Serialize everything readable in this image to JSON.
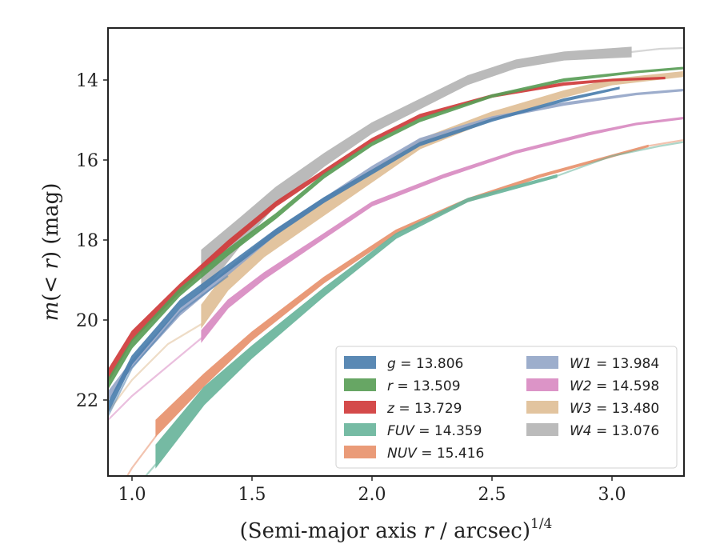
{
  "chart_data": {
    "type": "line",
    "title": "",
    "xlabel": "(Semi-major axis r / arcsec)",
    "xlabel_sup": "1/4",
    "ylabel_main": "(< r) (mag)",
    "ylabel_m": "m",
    "xlim": [
      0.9,
      3.3
    ],
    "ylim": [
      23.9,
      12.7
    ],
    "y_inverted": true,
    "xticks": [
      1.0,
      1.5,
      2.0,
      2.5,
      3.0
    ],
    "xtick_labels": [
      "1.0",
      "1.5",
      "2.0",
      "2.5",
      "3.0"
    ],
    "yticks": [
      14,
      16,
      18,
      20,
      22
    ],
    "ytick_labels": [
      "14",
      "16",
      "18",
      "20",
      "22"
    ],
    "grid": false,
    "legend_position": "lower-right",
    "series": [
      {
        "name": "g = 13.806",
        "sym": "g",
        "value": "= 13.806",
        "color": "#4c7fae",
        "faint_x": [
          0.9,
          1.0,
          1.2,
          1.4
        ],
        "faint_y": [
          22.4,
          21.2,
          19.8,
          18.9
        ],
        "x": [
          0.9,
          1.0,
          1.2,
          1.4,
          1.6,
          1.8,
          2.0,
          2.2,
          2.5,
          2.8,
          3.03
        ],
        "y": [
          22.2,
          21.0,
          19.6,
          18.7,
          17.8,
          17.0,
          16.3,
          15.6,
          15.0,
          14.5,
          14.2
        ],
        "half": [
          0.12,
          0.1,
          0.09,
          0.08,
          0.07,
          0.06,
          0.05,
          0.04,
          0.03,
          0.03,
          0.02
        ],
        "tail_x": [],
        "tail_y": []
      },
      {
        "name": "r = 13.509",
        "sym": "r",
        "value": "= 13.509",
        "color": "#5a9e57",
        "faint_x": [],
        "faint_y": [],
        "x": [
          0.9,
          1.0,
          1.2,
          1.4,
          1.6,
          1.8,
          2.0,
          2.2,
          2.5,
          2.8,
          3.1,
          3.3
        ],
        "y": [
          21.6,
          20.6,
          19.3,
          18.3,
          17.4,
          16.4,
          15.6,
          15.0,
          14.4,
          14.0,
          13.8,
          13.7
        ],
        "half": [
          0.12,
          0.1,
          0.09,
          0.08,
          0.06,
          0.05,
          0.04,
          0.04,
          0.03,
          0.03,
          0.02,
          0.02
        ],
        "tail_x": [],
        "tail_y": []
      },
      {
        "name": "z = 13.729",
        "sym": "z",
        "value": "= 13.729",
        "color": "#d03b3b",
        "faint_x": [],
        "faint_y": [],
        "x": [
          0.9,
          1.0,
          1.2,
          1.4,
          1.6,
          1.8,
          2.0,
          2.2,
          2.5,
          2.8,
          3.0,
          3.22
        ],
        "y": [
          21.4,
          20.4,
          19.2,
          18.1,
          17.1,
          16.3,
          15.5,
          14.9,
          14.4,
          14.1,
          14.0,
          13.95
        ],
        "half": [
          0.15,
          0.12,
          0.1,
          0.08,
          0.06,
          0.05,
          0.04,
          0.04,
          0.03,
          0.03,
          0.02,
          0.02
        ],
        "tail_x": [],
        "tail_y": []
      },
      {
        "name": "FUV = 14.359",
        "sym": "FUV",
        "value": "= 14.359",
        "color": "#6ab59c",
        "faint_x": [
          0.95,
          1.0,
          1.1
        ],
        "faint_y": [
          24.8,
          24.3,
          23.6
        ],
        "x": [
          1.1,
          1.3,
          1.5,
          1.8,
          2.1,
          2.4,
          2.77
        ],
        "y": [
          23.4,
          21.9,
          20.8,
          19.3,
          17.9,
          17.0,
          16.4
        ],
        "half": [
          0.28,
          0.22,
          0.15,
          0.1,
          0.06,
          0.04,
          0.03
        ],
        "tail_x": [
          2.77,
          3.0,
          3.2,
          3.3
        ],
        "tail_y": [
          16.4,
          15.9,
          15.65,
          15.55
        ]
      },
      {
        "name": "NUV = 15.416",
        "sym": "NUV",
        "value": "= 15.416",
        "color": "#e8926d",
        "faint_x": [
          0.95,
          1.0,
          1.1
        ],
        "faint_y": [
          24.2,
          23.7,
          22.9
        ],
        "x": [
          1.1,
          1.3,
          1.5,
          1.8,
          2.1,
          2.4,
          2.7,
          3.15
        ],
        "y": [
          22.7,
          21.5,
          20.4,
          19.0,
          17.8,
          17.0,
          16.4,
          15.65
        ],
        "half": [
          0.2,
          0.15,
          0.1,
          0.07,
          0.05,
          0.04,
          0.03,
          0.02
        ],
        "tail_x": [
          3.15,
          3.3
        ],
        "tail_y": [
          15.65,
          15.5
        ]
      },
      {
        "name": "W1 = 13.984",
        "sym": "W1",
        "value": "= 13.984",
        "color": "#95a7c8",
        "faint_x": [],
        "faint_y": [],
        "x": [
          0.9,
          1.0,
          1.2,
          1.4,
          1.6,
          1.8,
          2.0,
          2.2,
          2.5,
          2.8,
          3.1,
          3.3
        ],
        "y": [
          21.9,
          21.1,
          19.8,
          18.8,
          17.8,
          17.0,
          16.2,
          15.5,
          14.95,
          14.6,
          14.35,
          14.25
        ],
        "half": [
          0.1,
          0.09,
          0.08,
          0.07,
          0.06,
          0.05,
          0.04,
          0.04,
          0.03,
          0.03,
          0.02,
          0.02
        ],
        "tail_x": [],
        "tail_y": []
      },
      {
        "name": "W2 = 14.598",
        "sym": "W2",
        "value": "= 14.598",
        "color": "#d98bc2",
        "faint_x": [
          0.9,
          1.0,
          1.2,
          1.29
        ],
        "faint_y": [
          22.5,
          21.9,
          20.9,
          20.45
        ],
        "x": [
          1.29,
          1.4,
          1.55,
          1.8,
          2.0,
          2.3,
          2.6,
          2.9,
          3.1,
          3.3
        ],
        "y": [
          20.4,
          19.6,
          18.9,
          17.9,
          17.1,
          16.4,
          15.8,
          15.35,
          15.1,
          14.95
        ],
        "half": [
          0.14,
          0.1,
          0.08,
          0.06,
          0.05,
          0.04,
          0.03,
          0.03,
          0.02,
          0.02
        ],
        "tail_x": [],
        "tail_y": []
      },
      {
        "name": "W3 = 13.480",
        "sym": "W3",
        "value": "= 13.480",
        "color": "#e0bf97",
        "faint_x": [
          0.9,
          1.0,
          1.15,
          1.29
        ],
        "faint_y": [
          22.3,
          21.5,
          20.6,
          20.1
        ],
        "x": [
          1.29,
          1.4,
          1.55,
          1.8,
          2.0,
          2.2,
          2.5,
          2.8,
          3.0,
          3.3
        ],
        "y": [
          19.9,
          19.0,
          18.2,
          17.2,
          16.4,
          15.6,
          14.9,
          14.35,
          14.05,
          13.85
        ],
        "half": [
          0.28,
          0.25,
          0.22,
          0.18,
          0.15,
          0.12,
          0.1,
          0.08,
          0.07,
          0.06
        ],
        "tail_x": [],
        "tail_y": []
      },
      {
        "name": "W4 = 13.076",
        "sym": "W4",
        "value": "= 13.076",
        "color": "#b5b5b5",
        "faint_x": [],
        "faint_y": [],
        "x": [
          1.29,
          1.45,
          1.6,
          1.8,
          2.0,
          2.2,
          2.4,
          2.6,
          2.8,
          3.08
        ],
        "y": [
          18.8,
          17.8,
          16.9,
          16.0,
          15.2,
          14.6,
          14.0,
          13.6,
          13.4,
          13.3
        ],
        "half": [
          0.55,
          0.35,
          0.22,
          0.16,
          0.13,
          0.12,
          0.11,
          0.1,
          0.1,
          0.12
        ],
        "tail_x": [
          3.08,
          3.2,
          3.3
        ],
        "tail_y": [
          13.3,
          13.22,
          13.2
        ]
      }
    ]
  }
}
